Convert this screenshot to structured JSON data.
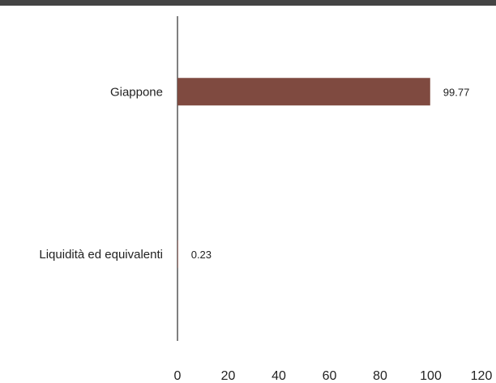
{
  "chart_data": {
    "type": "bar",
    "orientation": "horizontal",
    "categories": [
      "Giappone",
      "Liquidità ed equivalenti"
    ],
    "values": [
      99.77,
      0.23
    ],
    "data_labels": [
      "99.77",
      "0.23"
    ],
    "xlim": [
      0,
      120
    ],
    "x_ticks": [
      0,
      20,
      40,
      60,
      80,
      100,
      120
    ],
    "x_tick_labels": [
      "0",
      "20",
      "40",
      "60",
      "80",
      "100",
      "120"
    ],
    "bar_color": "#7f4a40",
    "grid": false,
    "title": "",
    "xlabel": "",
    "ylabel": ""
  }
}
